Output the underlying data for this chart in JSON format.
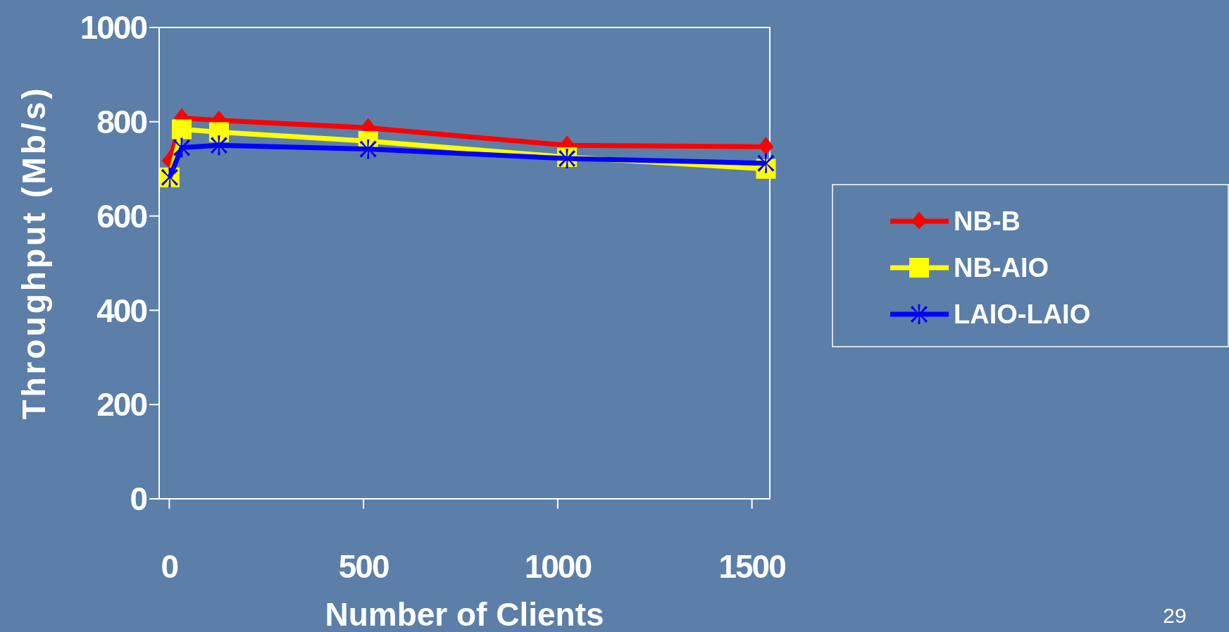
{
  "chart_data": {
    "type": "line",
    "xlabel": "Number of Clients",
    "ylabel": "Throughput (Mb/s)",
    "x": [
      1,
      32,
      128,
      512,
      1024,
      1536
    ],
    "xlim": [
      -26,
      1546
    ],
    "xticks": [
      0,
      500,
      1000,
      1500
    ],
    "ylim": [
      0,
      1000
    ],
    "yticks": [
      0,
      200,
      400,
      600,
      800,
      1000
    ],
    "grid": false,
    "legend": "right",
    "line_style": "solid",
    "annotations": [
      "29"
    ],
    "series": [
      {
        "name": "NB-B",
        "color": "#ff0000",
        "marker": "diamond",
        "values": [
          717,
          808,
          803,
          787,
          750,
          747
        ]
      },
      {
        "name": "NB-AIO",
        "color": "#ffff00",
        "marker": "square",
        "values": [
          682,
          784,
          778,
          759,
          725,
          700
        ]
      },
      {
        "name": "LAIO-LAIO",
        "color": "#0000ff",
        "marker": "cross",
        "values": [
          682,
          745,
          750,
          742,
          722,
          712
        ]
      }
    ]
  }
}
